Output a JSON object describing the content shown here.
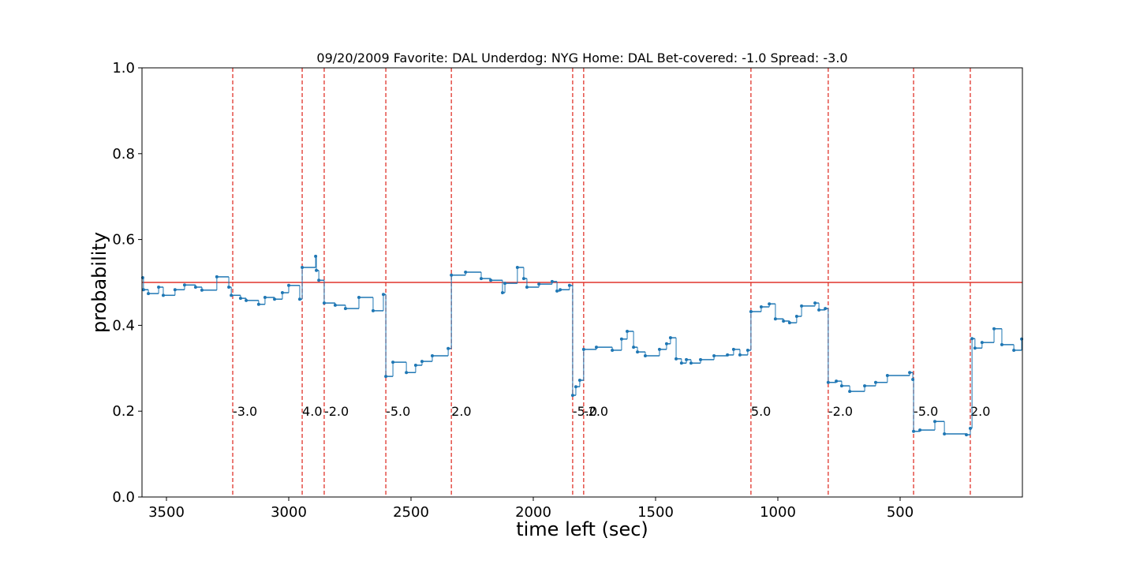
{
  "chart_data": {
    "type": "step",
    "title": "09/20/2009 Favorite: DAL Underdog: NYG Home: DAL Bet-covered: -1.0 Spread: -3.0",
    "x_label": "time left (sec)",
    "y_label": "probability",
    "xlim": [
      3600,
      0
    ],
    "ylim": [
      0,
      1
    ],
    "xticks": [
      3500,
      3000,
      2500,
      2000,
      1500,
      1000,
      500
    ],
    "yticks": [
      {
        "value": 0,
        "label": "0.0"
      },
      0.2,
      0.4,
      0.6,
      0.8,
      {
        "value": 1,
        "label": "1.0"
      }
    ],
    "hline": 0.5,
    "hline_color": "#e0342b",
    "event_color": "#e0342b",
    "series": [
      {
        "color": "#1f77b4",
        "x": [
          3597,
          3594,
          3574,
          3532,
          3513,
          3465,
          3426,
          3381,
          3355,
          3294,
          3245,
          3235,
          3197,
          3174,
          3123,
          3097,
          3058,
          3026,
          3000,
          2955,
          2945,
          2890,
          2887,
          2877,
          2855,
          2810,
          2768,
          2713,
          2655,
          2613,
          2603,
          2574,
          2519,
          2481,
          2455,
          2413,
          2348,
          2335,
          2277,
          2213,
          2174,
          2126,
          2116,
          2065,
          2039,
          2026,
          1977,
          1923,
          1903,
          1890,
          1852,
          1839,
          1826,
          1810,
          1794,
          1742,
          1677,
          1639,
          1616,
          1590,
          1574,
          1542,
          1484,
          1455,
          1439,
          1416,
          1394,
          1374,
          1355,
          1316,
          1261,
          1206,
          1181,
          1155,
          1123,
          1110,
          1068,
          1035,
          1010,
          977,
          952,
          923,
          903,
          848,
          832,
          806,
          794,
          761,
          739,
          706,
          645,
          600,
          552,
          461,
          448,
          445,
          419,
          358,
          319,
          229,
          213,
          206,
          194,
          165,
          116,
          84,
          35,
          3
        ],
        "values": [
          0.511,
          0.483,
          0.474,
          0.489,
          0.47,
          0.483,
          0.494,
          0.489,
          0.482,
          0.513,
          0.489,
          0.47,
          0.463,
          0.458,
          0.449,
          0.465,
          0.461,
          0.476,
          0.493,
          0.461,
          0.535,
          0.561,
          0.528,
          0.505,
          0.452,
          0.447,
          0.439,
          0.465,
          0.434,
          0.472,
          0.281,
          0.314,
          0.29,
          0.307,
          0.316,
          0.329,
          0.346,
          0.517,
          0.524,
          0.509,
          0.505,
          0.476,
          0.498,
          0.535,
          0.509,
          0.489,
          0.496,
          0.502,
          0.48,
          0.483,
          0.493,
          0.237,
          0.257,
          0.272,
          0.344,
          0.349,
          0.342,
          0.368,
          0.386,
          0.349,
          0.338,
          0.329,
          0.344,
          0.357,
          0.371,
          0.322,
          0.312,
          0.32,
          0.312,
          0.32,
          0.329,
          0.331,
          0.344,
          0.331,
          0.342,
          0.432,
          0.443,
          0.45,
          0.415,
          0.41,
          0.406,
          0.421,
          0.445,
          0.452,
          0.436,
          0.439,
          0.267,
          0.27,
          0.259,
          0.246,
          0.259,
          0.267,
          0.283,
          0.29,
          0.274,
          0.153,
          0.156,
          0.176,
          0.147,
          0.145,
          0.16,
          0.369,
          0.347,
          0.36,
          0.392,
          0.355,
          0.342,
          0.368
        ]
      }
    ],
    "events": [
      {
        "x": 3229,
        "y": 0.2,
        "label": "-3.0"
      },
      {
        "x": 2945,
        "y": 0.2,
        "label": "4.0"
      },
      {
        "x": 2855,
        "y": 0.2,
        "label": "-2.0"
      },
      {
        "x": 2603,
        "y": 0.2,
        "label": "-5.0"
      },
      {
        "x": 2335,
        "y": 0.2,
        "label": "2.0"
      },
      {
        "x": 1839,
        "y": 0.2,
        "label": "-5.0"
      },
      {
        "x": 1794,
        "y": 0.2,
        "label": "-2.0"
      },
      {
        "x": 1110,
        "y": 0.2,
        "label": "5.0"
      },
      {
        "x": 794,
        "y": 0.2,
        "label": "-2.0"
      },
      {
        "x": 445,
        "y": 0.2,
        "label": "-5.0"
      },
      {
        "x": 213,
        "y": 0.2,
        "label": "2.0"
      }
    ]
  }
}
